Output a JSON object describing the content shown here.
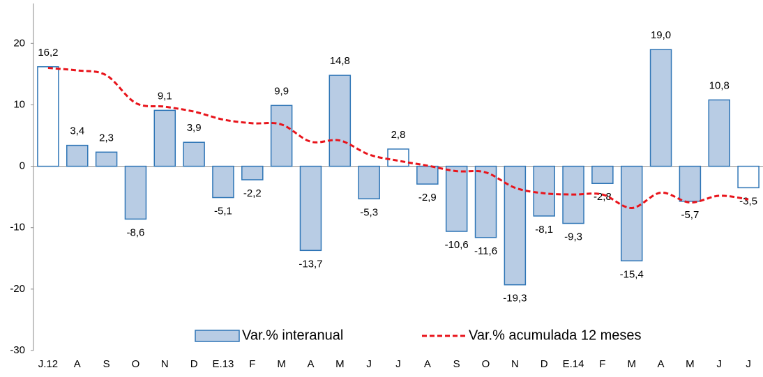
{
  "chart_data": {
    "type": "bar_line",
    "categories": [
      "J.12",
      "A",
      "S",
      "O",
      "N",
      "D",
      "E.13",
      "F",
      "M",
      "A",
      "M",
      "J",
      "J",
      "A",
      "S",
      "O",
      "N",
      "D",
      "E.14",
      "F",
      "M",
      "A",
      "M",
      "J",
      "J"
    ],
    "series": [
      {
        "name": "Var.% interanual",
        "type": "bar",
        "color": "#2e75b6",
        "fill": "#b8cce4",
        "fills": [
          "#ffffff",
          "#b8cce4",
          "#b8cce4",
          "#b8cce4",
          "#b8cce4",
          "#b8cce4",
          "#b8cce4",
          "#b8cce4",
          "#b8cce4",
          "#b8cce4",
          "#b8cce4",
          "#b8cce4",
          "#ffffff",
          "#b8cce4",
          "#b8cce4",
          "#b8cce4",
          "#b8cce4",
          "#b8cce4",
          "#b8cce4",
          "#b8cce4",
          "#b8cce4",
          "#b8cce4",
          "#b8cce4",
          "#b8cce4",
          "#ffffff"
        ],
        "values": [
          16.2,
          3.4,
          2.3,
          -8.6,
          9.1,
          3.9,
          -5.1,
          -2.2,
          9.9,
          -13.7,
          14.8,
          -5.3,
          2.8,
          -2.9,
          -10.6,
          -11.6,
          -19.3,
          -8.1,
          -9.3,
          -2.8,
          -15.4,
          19.0,
          -5.7,
          10.8,
          -3.5
        ],
        "value_labels": [
          "16,2",
          "3,4",
          "2,3",
          "-8,6",
          "9,1",
          "3,9",
          "-5,1",
          "-2,2",
          "9,9",
          "-13,7",
          "14,8",
          "-5,3",
          "2,8",
          "-2,9",
          "-10,6",
          "-11,6",
          "-19,3",
          "-8,1",
          "-9,3",
          "-2,8",
          "-15,4",
          "19,0",
          "-5,7",
          "10,8",
          "-3,5"
        ]
      },
      {
        "name": "Var.% acumulada 12 meses",
        "type": "line",
        "color": "#e8141b",
        "dashed": true,
        "values": [
          16.0,
          15.6,
          14.8,
          10.3,
          9.7,
          8.9,
          7.6,
          7.0,
          6.8,
          4.0,
          4.2,
          1.9,
          0.9,
          0.1,
          -0.8,
          -1.0,
          -3.5,
          -4.4,
          -4.6,
          -4.6,
          -6.8,
          -4.3,
          -5.9,
          -4.8,
          -5.4
        ]
      }
    ],
    "ylim": [
      -30,
      26.5
    ],
    "yticks": [
      -30,
      -20,
      -10,
      0,
      10,
      20
    ],
    "grid": false
  }
}
